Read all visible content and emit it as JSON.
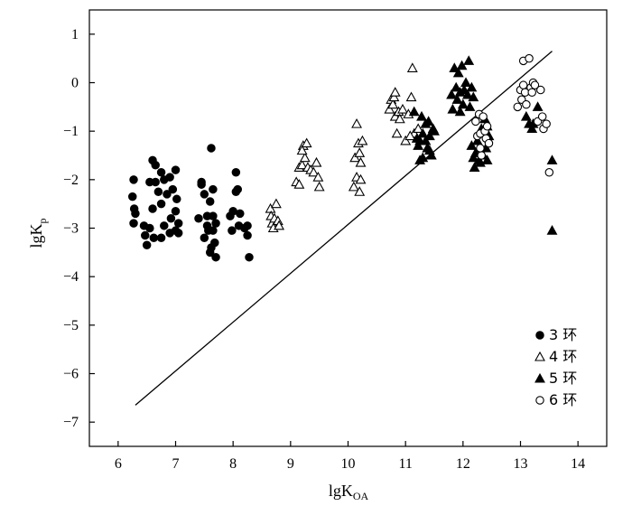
{
  "chart_data": {
    "type": "scatter",
    "title": "",
    "xlabel_main": "lgK",
    "xlabel_sub": "OA",
    "ylabel_main": "lgK",
    "ylabel_sub": "p",
    "xlim": [
      5.5,
      14.5
    ],
    "ylim": [
      -7.5,
      1.5
    ],
    "xticks": [
      6,
      7,
      8,
      9,
      10,
      11,
      12,
      13,
      14
    ],
    "yticks": [
      1,
      0,
      -1,
      -2,
      -3,
      -4,
      -5,
      -6,
      -7
    ],
    "xtick_labels": [
      "6",
      "7",
      "8",
      "9",
      "10",
      "11",
      "12",
      "13",
      "14"
    ],
    "ytick_labels": [
      "1",
      "0",
      "−1",
      "−2",
      "−3",
      "−4",
      "−5",
      "−6",
      "−7"
    ],
    "line": {
      "x": [
        6.3,
        13.55
      ],
      "y": [
        -6.65,
        0.65
      ]
    },
    "legend_position": "bottom-right",
    "series": [
      {
        "name": "3 环",
        "marker": "filled-circle",
        "points": [
          [
            6.27,
            -2.0
          ],
          [
            6.25,
            -2.35
          ],
          [
            6.28,
            -2.6
          ],
          [
            6.27,
            -2.9
          ],
          [
            6.3,
            -2.7
          ],
          [
            6.45,
            -2.95
          ],
          [
            6.47,
            -3.15
          ],
          [
            6.5,
            -3.35
          ],
          [
            6.55,
            -3.0
          ],
          [
            6.6,
            -2.6
          ],
          [
            6.6,
            -1.6
          ],
          [
            6.65,
            -1.7
          ],
          [
            6.65,
            -2.05
          ],
          [
            6.7,
            -2.25
          ],
          [
            6.75,
            -1.85
          ],
          [
            6.75,
            -2.5
          ],
          [
            6.8,
            -2.0
          ],
          [
            6.8,
            -2.95
          ],
          [
            6.85,
            -2.3
          ],
          [
            6.9,
            -1.95
          ],
          [
            6.55,
            -2.05
          ],
          [
            6.62,
            -3.2
          ],
          [
            6.75,
            -3.2
          ],
          [
            6.92,
            -2.8
          ],
          [
            6.95,
            -2.2
          ],
          [
            7.0,
            -1.8
          ],
          [
            7.0,
            -2.65
          ],
          [
            7.02,
            -2.4
          ],
          [
            7.05,
            -2.9
          ],
          [
            7.05,
            -3.1
          ],
          [
            7.0,
            -3.05
          ],
          [
            6.9,
            -3.1
          ],
          [
            7.4,
            -2.8
          ],
          [
            7.45,
            -2.05
          ],
          [
            7.5,
            -3.2
          ],
          [
            7.5,
            -2.3
          ],
          [
            7.55,
            -2.75
          ],
          [
            7.55,
            -2.95
          ],
          [
            7.6,
            -3.5
          ],
          [
            7.6,
            -2.45
          ],
          [
            7.62,
            -1.35
          ],
          [
            7.65,
            -2.75
          ],
          [
            7.65,
            -3.05
          ],
          [
            7.68,
            -3.3
          ],
          [
            7.7,
            -2.9
          ],
          [
            7.7,
            -3.6
          ],
          [
            7.45,
            -2.1
          ],
          [
            7.57,
            -3.05
          ],
          [
            7.62,
            -3.4
          ],
          [
            7.65,
            -2.2
          ],
          [
            7.95,
            -2.75
          ],
          [
            7.98,
            -3.05
          ],
          [
            8.0,
            -2.65
          ],
          [
            8.05,
            -2.25
          ],
          [
            8.05,
            -1.85
          ],
          [
            8.08,
            -2.2
          ],
          [
            8.1,
            -2.95
          ],
          [
            8.12,
            -2.7
          ],
          [
            8.2,
            -3.0
          ],
          [
            8.25,
            -3.15
          ],
          [
            8.28,
            -3.6
          ],
          [
            8.25,
            -2.95
          ]
        ]
      },
      {
        "name": "4 环",
        "marker": "open-triangle",
        "points": [
          [
            8.65,
            -2.6
          ],
          [
            8.66,
            -2.75
          ],
          [
            8.68,
            -2.9
          ],
          [
            8.7,
            -3.0
          ],
          [
            8.72,
            -2.8
          ],
          [
            8.75,
            -2.5
          ],
          [
            8.78,
            -2.85
          ],
          [
            8.8,
            -2.95
          ],
          [
            9.1,
            -2.05
          ],
          [
            9.15,
            -1.75
          ],
          [
            9.15,
            -2.1
          ],
          [
            9.2,
            -1.7
          ],
          [
            9.22,
            -1.3
          ],
          [
            9.25,
            -1.55
          ],
          [
            9.28,
            -1.25
          ],
          [
            9.3,
            -1.75
          ],
          [
            9.35,
            -1.8
          ],
          [
            9.4,
            -1.85
          ],
          [
            9.45,
            -1.65
          ],
          [
            9.48,
            -1.95
          ],
          [
            9.5,
            -2.15
          ],
          [
            9.2,
            -1.4
          ],
          [
            10.1,
            -2.15
          ],
          [
            10.12,
            -1.55
          ],
          [
            10.15,
            -0.85
          ],
          [
            10.15,
            -1.95
          ],
          [
            10.18,
            -1.25
          ],
          [
            10.2,
            -1.45
          ],
          [
            10.22,
            -1.65
          ],
          [
            10.22,
            -2.0
          ],
          [
            10.25,
            -1.2
          ],
          [
            10.2,
            -2.25
          ],
          [
            10.72,
            -0.55
          ],
          [
            10.75,
            -0.35
          ],
          [
            10.78,
            -0.45
          ],
          [
            10.8,
            -0.3
          ],
          [
            10.82,
            -0.7
          ],
          [
            10.85,
            -1.05
          ],
          [
            10.88,
            -0.6
          ],
          [
            10.9,
            -0.75
          ],
          [
            10.95,
            -0.55
          ],
          [
            11.0,
            -1.2
          ],
          [
            11.05,
            -0.65
          ],
          [
            11.1,
            -0.3
          ],
          [
            11.12,
            0.3
          ],
          [
            11.15,
            -1.05
          ],
          [
            11.2,
            -1.15
          ],
          [
            10.82,
            -0.2
          ],
          [
            11.08,
            -1.1
          ],
          [
            11.22,
            -0.95
          ]
        ]
      },
      {
        "name": "5 环",
        "marker": "filled-triangle",
        "points": [
          [
            11.15,
            -0.6
          ],
          [
            11.2,
            -1.15
          ],
          [
            11.22,
            -1.3
          ],
          [
            11.25,
            -1.2
          ],
          [
            11.28,
            -0.7
          ],
          [
            11.3,
            -1.05
          ],
          [
            11.3,
            -1.55
          ],
          [
            11.35,
            -1.2
          ],
          [
            11.38,
            -1.35
          ],
          [
            11.4,
            -0.8
          ],
          [
            11.42,
            -1.1
          ],
          [
            11.45,
            -1.5
          ],
          [
            11.48,
            -0.95
          ],
          [
            11.5,
            -1.0
          ],
          [
            11.25,
            -1.6
          ],
          [
            11.35,
            -0.85
          ],
          [
            11.42,
            -1.4
          ],
          [
            11.8,
            -0.25
          ],
          [
            11.82,
            -0.55
          ],
          [
            11.85,
            0.3
          ],
          [
            11.88,
            -0.1
          ],
          [
            11.9,
            -0.35
          ],
          [
            11.92,
            0.2
          ],
          [
            11.95,
            -0.2
          ],
          [
            11.98,
            0.35
          ],
          [
            12.0,
            -0.45
          ],
          [
            12.02,
            -0.15
          ],
          [
            12.05,
            0.0
          ],
          [
            12.08,
            -0.25
          ],
          [
            12.1,
            0.45
          ],
          [
            12.12,
            -0.5
          ],
          [
            12.15,
            -0.1
          ],
          [
            12.18,
            -0.3
          ],
          [
            11.95,
            -0.6
          ],
          [
            12.15,
            -1.3
          ],
          [
            12.18,
            -1.55
          ],
          [
            12.2,
            -1.75
          ],
          [
            12.22,
            -1.45
          ],
          [
            12.25,
            -1.2
          ],
          [
            12.28,
            -1.6
          ],
          [
            12.3,
            -1.65
          ],
          [
            12.32,
            -0.95
          ],
          [
            12.35,
            -1.5
          ],
          [
            12.38,
            -0.75
          ],
          [
            12.4,
            -1.35
          ],
          [
            12.42,
            -0.9
          ],
          [
            12.45,
            -1.1
          ],
          [
            12.42,
            -1.6
          ],
          [
            13.1,
            -0.7
          ],
          [
            13.15,
            -0.85
          ],
          [
            13.2,
            -0.95
          ],
          [
            13.22,
            -0.85
          ],
          [
            13.3,
            -0.5
          ],
          [
            13.55,
            -1.6
          ],
          [
            13.55,
            -3.05
          ]
        ]
      },
      {
        "name": "6 环",
        "marker": "open-circle",
        "points": [
          [
            12.22,
            -0.8
          ],
          [
            12.25,
            -1.1
          ],
          [
            12.28,
            -0.65
          ],
          [
            12.3,
            -1.05
          ],
          [
            12.32,
            -1.5
          ],
          [
            12.35,
            -0.7
          ],
          [
            12.38,
            -1.0
          ],
          [
            12.4,
            -1.15
          ],
          [
            12.42,
            -0.9
          ],
          [
            12.45,
            -1.25
          ],
          [
            12.3,
            -1.35
          ],
          [
            12.95,
            -0.5
          ],
          [
            13.0,
            -0.15
          ],
          [
            13.02,
            -0.35
          ],
          [
            13.05,
            -0.05
          ],
          [
            13.05,
            0.45
          ],
          [
            13.08,
            -0.2
          ],
          [
            13.1,
            -0.45
          ],
          [
            13.15,
            0.5
          ],
          [
            13.18,
            -0.1
          ],
          [
            13.2,
            -0.2
          ],
          [
            13.22,
            0.0
          ],
          [
            13.25,
            -0.05
          ],
          [
            13.3,
            -0.8
          ],
          [
            13.35,
            -0.15
          ],
          [
            13.38,
            -0.7
          ],
          [
            13.4,
            -0.95
          ],
          [
            13.45,
            -0.85
          ],
          [
            13.5,
            -1.85
          ]
        ]
      }
    ]
  }
}
